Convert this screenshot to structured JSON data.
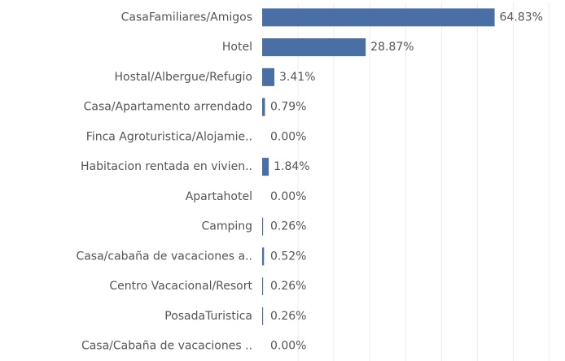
{
  "chart_data": {
    "type": "bar",
    "orientation": "horizontal",
    "categories": [
      "CasaFamiliares/Amigos",
      "Hotel",
      "Hostal/Albergue/Refugio",
      "Casa/Apartamento arrendado",
      "Finca Agroturistica/Alojamie..",
      "Habitacion rentada en vivien..",
      "Apartahotel",
      "Camping",
      "Casa/cabaña de vacaciones a..",
      "Centro Vacacional/Resort",
      "PosadaTuristica",
      "Casa/Cabaña de vacaciones .."
    ],
    "values": [
      64.83,
      28.87,
      3.41,
      0.79,
      0.0,
      1.84,
      0.0,
      0.26,
      0.52,
      0.26,
      0.26,
      0.0
    ],
    "value_labels": [
      "64.83%",
      "28.87%",
      "3.41%",
      "0.79%",
      "0.00%",
      "1.84%",
      "0.00%",
      "0.26%",
      "0.52%",
      "0.26%",
      "0.26%",
      "0.00%"
    ],
    "color": "#4a6fa5",
    "xlim": [
      0,
      84
    ],
    "xticks": [
      0,
      10,
      20,
      30,
      40,
      50,
      60,
      70,
      80
    ],
    "grid": true
  }
}
